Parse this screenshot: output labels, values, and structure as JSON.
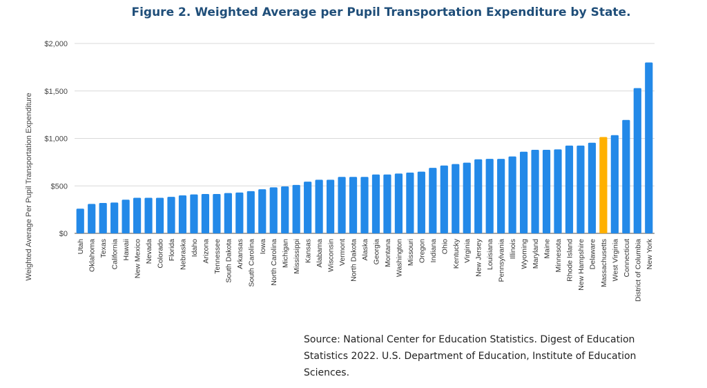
{
  "chart_data": {
    "type": "bar",
    "title": "Figure 2. Weighted Average per Pupil Transportation Expenditure by State.",
    "xlabel": "",
    "ylabel": "Weighted Average Per Pupil Transportation Expenditure",
    "ylim": [
      0,
      2000
    ],
    "yticks": [
      "$0",
      "$500",
      "$1,000",
      "$1,500",
      "$2,000"
    ],
    "grid": true,
    "categories": [
      "Utah",
      "Oklahoma",
      "Texas",
      "California",
      "Hawaii",
      "New Mexico",
      "Nevada",
      "Colorado",
      "Florida",
      "Nebraska",
      "Idaho",
      "Arizona",
      "Tennessee",
      "South Dakota",
      "Arkansas",
      "South Carolina",
      "Iowa",
      "North Carolina",
      "Michigan",
      "Mississippi",
      "Kansas",
      "Alabama",
      "Wisconsin",
      "Vermont",
      "North Dakota",
      "Alaska",
      "Georgia",
      "Montana",
      "Washington",
      "Missouri",
      "Oregon",
      "Indiana",
      "Ohio",
      "Kentucky",
      "Virginia",
      "New Jersey",
      "Louisiana",
      "Pennsylvania",
      "Illinois",
      "Wyoming",
      "Maryland",
      "Maine",
      "Minnesota",
      "Rhode Island",
      "New Hampshire",
      "Delaware",
      "Massachusetts",
      "West Virginia",
      "Connecticut",
      "District of Columbia",
      "New York"
    ],
    "values": [
      260,
      310,
      320,
      325,
      355,
      375,
      375,
      375,
      385,
      400,
      410,
      415,
      415,
      425,
      430,
      445,
      465,
      485,
      495,
      510,
      545,
      565,
      565,
      595,
      595,
      595,
      620,
      620,
      630,
      640,
      650,
      690,
      715,
      730,
      745,
      780,
      785,
      785,
      810,
      860,
      880,
      880,
      885,
      925,
      925,
      955,
      1015,
      1035,
      1195,
      1530,
      1800
    ],
    "colors": {
      "default": "#2389e8",
      "highlight": "#ffb000",
      "grid": "#d9d9d9",
      "title": "#1f4e79"
    },
    "highlight": "Massachusetts"
  },
  "source": "Source: National Center for Education Statistics. Digest of Education Statistics 2022. U.S. Department of Education, Institute of Education Sciences."
}
